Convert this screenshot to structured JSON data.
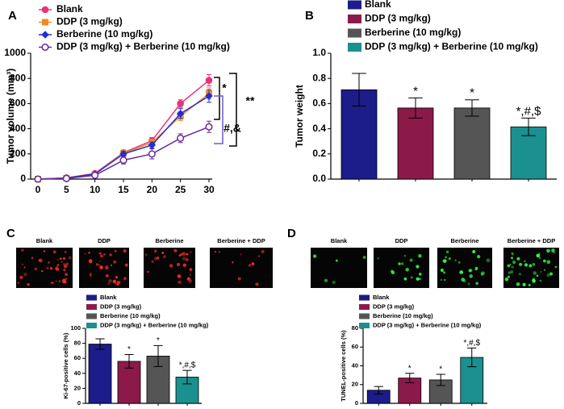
{
  "chart_data": [
    {
      "type": "line",
      "panel": "A",
      "ylabel": "Tumor volume (mm³)",
      "x": [
        0,
        5,
        10,
        15,
        20,
        25,
        30
      ],
      "xlim": [
        0,
        30
      ],
      "xticks": [
        0,
        5,
        10,
        15,
        20,
        25,
        30
      ],
      "ylim": [
        0,
        1000
      ],
      "yticks": [
        0,
        200,
        400,
        600,
        800,
        1000
      ],
      "series": [
        {
          "name": "Blank",
          "color": "#e8327c",
          "marker": "circle",
          "values": [
            0,
            10,
            45,
            210,
            305,
            600,
            785
          ],
          "errors": [
            0,
            3,
            8,
            20,
            25,
            30,
            45
          ]
        },
        {
          "name": "DDP (3 mg/kg)",
          "color": "#f28a1e",
          "marker": "square",
          "values": [
            0,
            8,
            40,
            205,
            290,
            500,
            680
          ],
          "errors": [
            0,
            3,
            8,
            20,
            25,
            35,
            45
          ]
        },
        {
          "name": "Berberine (10 mg/kg)",
          "color": "#1f2fd6",
          "marker": "diamond",
          "values": [
            0,
            8,
            40,
            200,
            270,
            520,
            660
          ],
          "errors": [
            0,
            3,
            8,
            20,
            25,
            40,
            50
          ]
        },
        {
          "name": "DDP (3 mg/kg) + Berberine (10 mg/kg)",
          "color": "#6a2a9a",
          "marker": "open-circle",
          "values": [
            0,
            5,
            30,
            150,
            200,
            325,
            415
          ],
          "errors": [
            0,
            3,
            8,
            30,
            40,
            35,
            45
          ]
        }
      ],
      "annotations": [
        "*",
        "#,&",
        "**"
      ]
    },
    {
      "type": "bar",
      "panel": "B",
      "ylabel": "Tumor weight",
      "categories": [
        "Blank",
        "DDP (3 mg/kg)",
        "Berberine (10 mg/kg)",
        "DDP (3 mg/kg) + Berberine (10 mg/kg)"
      ],
      "colors": [
        "#1c1c8a",
        "#8b1a4a",
        "#555555",
        "#1a9090"
      ],
      "values": [
        0.71,
        0.565,
        0.565,
        0.415
      ],
      "errors": [
        0.13,
        0.08,
        0.065,
        0.07
      ],
      "ylim": [
        0,
        1
      ],
      "yticks": [
        {
          "value": 0,
          "label": "0.0"
        },
        0.2,
        0.4,
        0.6,
        0.8,
        {
          "value": 1,
          "label": "1.0"
        }
      ],
      "annotations": [
        "*",
        "*",
        "*,#,$"
      ]
    },
    {
      "type": "bar",
      "panel": "C",
      "ylabel": "Ki-67-positive cells (%)",
      "images": [
        "Blank",
        "DDP",
        "Berberine",
        "Berberine + DDP"
      ],
      "categories": [
        "Blank",
        "DDP (3 mg/kg)",
        "Berberine (10 mg/kg)",
        "DDP (3 mg/kg) + Berberine (10 mg/kg)"
      ],
      "colors": [
        "#1c1c8a",
        "#8b1a4a",
        "#555555",
        "#1a9090"
      ],
      "values": [
        79,
        56,
        63,
        35
      ],
      "errors": [
        7,
        9,
        14,
        9
      ],
      "ylim": [
        0,
        100
      ],
      "yticks": [
        0,
        20,
        40,
        60,
        80,
        100
      ],
      "annotations": [
        "*",
        "*",
        "*,#,$"
      ]
    },
    {
      "type": "bar",
      "panel": "D",
      "ylabel": "TUNEL-positive cells (%)",
      "images": [
        "Blank",
        "DDP",
        "Berberine",
        "Berberine + DDP"
      ],
      "categories": [
        "Blank",
        "DDP (3 mg/kg)",
        "Berberine (10 mg/kg)",
        "DDP (3 mg/kg) + Berberine (10 mg/kg)"
      ],
      "colors": [
        "#1c1c8a",
        "#8b1a4a",
        "#555555",
        "#1a9090"
      ],
      "values": [
        14,
        27,
        25,
        49
      ],
      "errors": [
        4,
        5,
        6,
        10
      ],
      "ylim": [
        0,
        80
      ],
      "yticks": [
        0,
        20,
        40,
        60,
        80
      ],
      "annotations": [
        "*",
        "*",
        "*,#,$"
      ]
    }
  ]
}
